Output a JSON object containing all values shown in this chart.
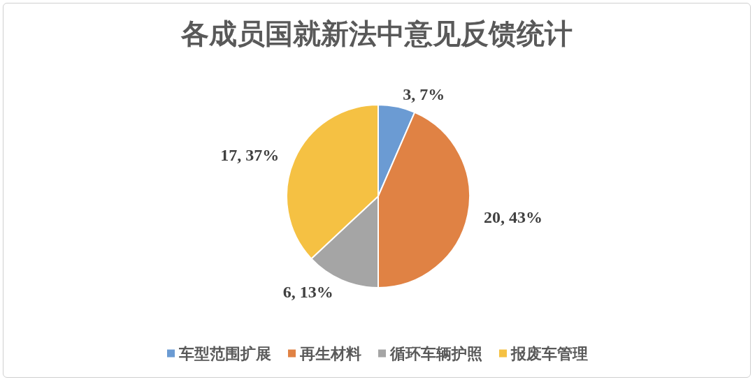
{
  "chart_data": {
    "type": "pie",
    "title": "各成员国就新法中意见反馈统计",
    "categories": [
      "车型范围扩展",
      "再生材料",
      "循环车辆护照",
      "报废车管理"
    ],
    "values": [
      3,
      20,
      6,
      17
    ],
    "colors": [
      "#6b9bd3",
      "#e08244",
      "#a5a5a5",
      "#f5c143"
    ],
    "value_labels": [
      "3, 7%",
      "20, 43%",
      "6, 13%",
      "17, 37%"
    ],
    "legend": "bottom"
  }
}
